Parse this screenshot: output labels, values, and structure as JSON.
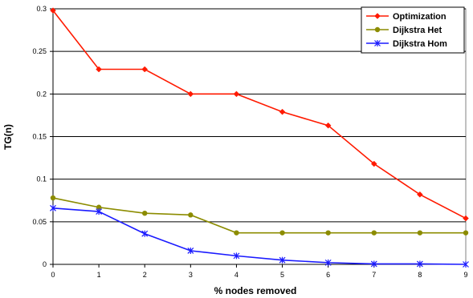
{
  "chart_data": {
    "type": "line",
    "title": "",
    "xlabel": "% nodes removed",
    "ylabel": "TG(n)",
    "x": [
      0,
      1,
      2,
      3,
      4,
      5,
      6,
      7,
      8,
      9
    ],
    "xlim": [
      0,
      9
    ],
    "ylim": [
      0,
      0.3
    ],
    "y_ticks": [
      0,
      0.05,
      0.1,
      0.15,
      0.2,
      0.25,
      0.3
    ],
    "y_tick_labels": [
      "0",
      "0.05",
      "0.1",
      "0.15",
      "0.2",
      "0.25",
      "0.3"
    ],
    "x_tick_labels": [
      "0",
      "1",
      "2",
      "3",
      "4",
      "5",
      "6",
      "7",
      "8",
      "9"
    ],
    "grid": "horizontal",
    "legend": "top-right",
    "series": [
      {
        "name": "Optimization",
        "color": "#ff1a00",
        "marker": "diamond",
        "values": [
          0.298,
          0.229,
          0.229,
          0.2,
          0.2,
          0.179,
          0.163,
          0.118,
          0.082,
          0.054
        ]
      },
      {
        "name": "Dijkstra Het",
        "color": "#8c8c00",
        "marker": "circle",
        "values": [
          0.078,
          0.067,
          0.06,
          0.058,
          0.037,
          0.037,
          0.037,
          0.037,
          0.037,
          0.037
        ]
      },
      {
        "name": "Dijkstra Hom",
        "color": "#1a1aff",
        "marker": "star",
        "values": [
          0.066,
          0.062,
          0.036,
          0.016,
          0.01,
          0.005,
          0.002,
          0.0005,
          0.0005,
          0.0
        ]
      }
    ]
  }
}
